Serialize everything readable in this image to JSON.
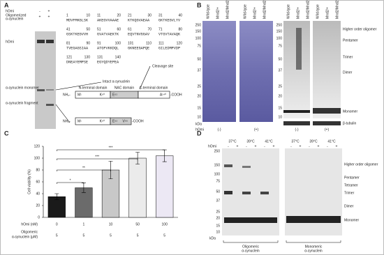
{
  "panel_labels": [
    "A",
    "B",
    "C",
    "D"
  ],
  "panel_a": {
    "legend_labels": [
      "hOmi",
      "Oligomerized",
      "α-synuclein"
    ],
    "legend_signs": [
      [
        "-",
        "+"
      ],
      [
        "+",
        "+"
      ]
    ],
    "gel_labels": [
      "hOmi",
      "α-synuclein monomer",
      "α-synuclein fragment"
    ],
    "annotations": [
      "Intact α-synuclein",
      "Cleavage site"
    ],
    "sequence": [
      [
        {
          "start": "1",
          "end": "10",
          "seq": "MDVFMKGLSK"
        },
        {
          "start": "11",
          "end": "20",
          "seq": "AKEGVVAAAE"
        },
        {
          "start": "21",
          "end": "30",
          "seq": "KTKQGVAEAA"
        },
        {
          "start": "31",
          "end": "40",
          "seq": "GKTKEGVLYV"
        }
      ],
      [
        {
          "start": "41",
          "end": "50",
          "seq": "GSKTKEGVVH"
        },
        {
          "start": "51",
          "end": "60",
          "seq": "GVATVAEKTK"
        },
        {
          "start": "61",
          "end": "70",
          "seq": "EQVTNVGGAV"
        },
        {
          "start": "71",
          "end": "80",
          "seq": "VTGVTAVAQK"
        }
      ],
      [
        {
          "start": "81",
          "end": "90",
          "seq": "TVEGAGSIAA"
        },
        {
          "start": "91",
          "end": "100",
          "seq": "ATGFVKKDQL"
        },
        {
          "start": "101",
          "end": "110",
          "seq": "GKNEEGAPQE"
        },
        {
          "start": "111",
          "end": "120",
          "seq": "GILEDMPVDP"
        }
      ],
      [
        {
          "start": "121",
          "end": "130",
          "seq": "DNEAYEMPSE"
        },
        {
          "start": "131",
          "end": "140",
          "seq": "EGYQDYEPEA"
        }
      ]
    ],
    "domains": [
      "N-terminal domain",
      "NAC domain",
      "C-terminal domain"
    ],
    "full": {
      "nh2": "NH₂-",
      "cooh": "-COOH",
      "residues": [
        "M¹",
        "K⁶⁰",
        "E⁶¹",
        "A¹⁴⁰"
      ]
    },
    "fragment": {
      "nh2": "NH₂-",
      "cooh": "-COOH",
      "residues": [
        "M¹",
        "K⁶⁰",
        "E⁶¹",
        "V⁹⁵"
      ]
    }
  },
  "panel_b": {
    "lanes": [
      "Wild-type",
      "Mnd2/+",
      "Mnd2/Mnd2"
    ],
    "kda_markers": [
      "250",
      "150",
      "100",
      "75",
      "50",
      "37",
      "25",
      "20",
      "15",
      "10"
    ],
    "kda": "kDa",
    "row_label": "hOmi",
    "conditions": [
      "(-)",
      "(+)",
      "(-)",
      "(+)"
    ],
    "bands": [
      "Higher order oligomer",
      "Pentamer",
      "Trimer",
      "Dimer",
      "Monomer",
      "β-tubulin"
    ]
  },
  "chart_data": {
    "type": "bar",
    "y_label": "Cell viability (%)",
    "categories": [
      "0",
      "1",
      "10",
      "50",
      "100"
    ],
    "category_label": "hOmi (nM)",
    "second_row": [
      "5",
      "5",
      "5",
      "5",
      "5"
    ],
    "second_row_label": [
      "Oligomeric",
      "α-synuclein (μM)"
    ],
    "values": [
      35,
      50,
      80,
      100,
      104
    ],
    "errors": [
      5,
      8,
      15,
      10,
      10
    ],
    "colors": [
      "#1a1a1a",
      "#6b6b6b",
      "#c8c8c8",
      "#ebebeb",
      "#ece8f4"
    ],
    "significance": [
      "*",
      "**",
      "***",
      "***"
    ],
    "ylim": [
      0,
      120
    ],
    "yticks": [
      0,
      20,
      40,
      60,
      80,
      100,
      120
    ]
  },
  "panel_d": {
    "temperatures": [
      "37°C",
      "39°C",
      "41°C",
      "37°C",
      "39°C",
      "41°C"
    ],
    "row_label": "hOmi",
    "signs": [
      "-",
      "+",
      "-",
      "+",
      "-",
      "+",
      "-",
      "+",
      "-",
      "+",
      "-",
      "+"
    ],
    "kda_markers": [
      "250",
      "150",
      "100",
      "75",
      "50",
      "37",
      "25",
      "20",
      "15",
      "10"
    ],
    "kda": "kDa",
    "bands": [
      "Higher order oligomer",
      "Pentamer",
      "Tetramer",
      "Trimer",
      "Dimer",
      "Monomer"
    ],
    "gel_titles": [
      [
        "Oligomeric",
        "α-synuclein"
      ],
      [
        "Monomeric",
        "α-synuclein"
      ]
    ]
  }
}
